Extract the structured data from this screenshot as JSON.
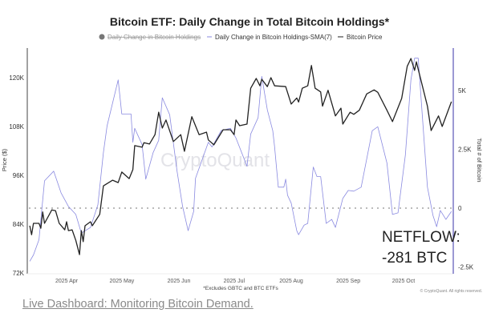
{
  "chart_data": {
    "type": "line",
    "title": "Bitcoin ETF: Daily Change in Total Bitcoin Holdings*",
    "legend": [
      {
        "label": "Daily Change in Bitcoin Holdings",
        "style": "disabled-dot",
        "color": "#888888"
      },
      {
        "label": "Daily Change in Bitcoin Holdings-SMA(7)",
        "color": "#8a8ae0"
      },
      {
        "label": "Bitcoin Price",
        "color": "#222222"
      }
    ],
    "legend_position": "top",
    "ylabel_left": "Price ($)",
    "ylabel_right": "Total # of Bitcoin",
    "left_ticks": [
      "72K",
      "84K",
      "96K",
      "108K",
      "120K"
    ],
    "left_tick_values": [
      72,
      84,
      96,
      108,
      120
    ],
    "right_ticks": [
      "-2.5K",
      "0",
      "2.5K",
      "5K"
    ],
    "right_tick_values": [
      -2.5,
      0,
      2.5,
      5
    ],
    "x_ticks": [
      "2025 Apr",
      "2025 May",
      "2025 Jun",
      "2025 Jul",
      "2025 Aug",
      "2025 Sep",
      "2025 Oct"
    ],
    "x_tick_dates": [
      "2025-04-01",
      "2025-05-01",
      "2025-06-01",
      "2025-07-01",
      "2025-08-01",
      "2025-09-01",
      "2025-10-01"
    ],
    "ylim_left": [
      72,
      126
    ],
    "ylim_right": [
      -2.9,
      6.6
    ],
    "reference_line": {
      "value": 0,
      "style": "dotted"
    },
    "grid": false,
    "watermark": "CryptoQuant",
    "footnote": "*Excludes GBTC and BTC ETFs",
    "copyright": "© CryptoQuant. All rights reserved.",
    "annotation": {
      "line1": "NETFLOW:",
      "line2": "-281 BTC"
    },
    "series": [
      {
        "name": "Bitcoin Price",
        "axis": "left",
        "unit": "K USD",
        "color": "#222222",
        "points": [
          [
            "2025-03-12",
            83.6
          ],
          [
            "2025-03-13",
            81.4
          ],
          [
            "2025-03-14",
            84.2
          ],
          [
            "2025-03-17",
            84.2
          ],
          [
            "2025-03-18",
            83
          ],
          [
            "2025-03-19",
            87
          ],
          [
            "2025-03-20",
            84.2
          ],
          [
            "2025-03-24",
            87.5
          ],
          [
            "2025-03-26",
            87.3
          ],
          [
            "2025-03-28",
            84.2
          ],
          [
            "2025-03-31",
            82.6
          ],
          [
            "2025-04-01",
            84.6
          ],
          [
            "2025-04-02",
            82.4
          ],
          [
            "2025-04-04",
            82.6
          ],
          [
            "2025-04-06",
            80
          ],
          [
            "2025-04-08",
            76.5
          ],
          [
            "2025-04-09",
            82.4
          ],
          [
            "2025-04-10",
            79.7
          ],
          [
            "2025-04-11",
            83.6
          ],
          [
            "2025-04-14",
            84.6
          ],
          [
            "2025-04-15",
            83.6
          ],
          [
            "2025-04-17",
            85
          ],
          [
            "2025-04-19",
            86.4
          ],
          [
            "2025-04-21",
            93.4
          ],
          [
            "2025-04-26",
            94.8
          ],
          [
            "2025-04-29",
            94.2
          ],
          [
            "2025-05-01",
            96.8
          ],
          [
            "2025-05-05",
            95.2
          ],
          [
            "2025-05-07",
            97.4
          ],
          [
            "2025-05-08",
            103.3
          ],
          [
            "2025-05-12",
            102.9
          ],
          [
            "2025-05-13",
            104
          ],
          [
            "2025-05-16",
            103.7
          ],
          [
            "2025-05-19",
            106
          ],
          [
            "2025-05-21",
            111.5
          ],
          [
            "2025-05-23",
            107.6
          ],
          [
            "2025-05-25",
            109.6
          ],
          [
            "2025-05-29",
            104.3
          ],
          [
            "2025-06-02",
            106
          ],
          [
            "2025-06-04",
            101.9
          ],
          [
            "2025-06-08",
            110.4
          ],
          [
            "2025-06-12",
            106
          ],
          [
            "2025-06-16",
            106.6
          ],
          [
            "2025-06-17",
            104.7
          ],
          [
            "2025-06-20",
            103.5
          ],
          [
            "2025-06-25",
            107.2
          ],
          [
            "2025-06-29",
            107.2
          ],
          [
            "2025-07-01",
            106
          ],
          [
            "2025-07-02",
            109.6
          ],
          [
            "2025-07-04",
            108.2
          ],
          [
            "2025-07-08",
            108.6
          ],
          [
            "2025-07-09",
            113
          ],
          [
            "2025-07-10",
            117.4
          ],
          [
            "2025-07-13",
            119.8
          ],
          [
            "2025-07-15",
            118
          ],
          [
            "2025-07-16",
            119.6
          ],
          [
            "2025-07-19",
            117.8
          ],
          [
            "2025-07-21",
            120
          ],
          [
            "2025-07-23",
            118
          ],
          [
            "2025-07-29",
            117.8
          ],
          [
            "2025-08-01",
            113.5
          ],
          [
            "2025-08-04",
            115
          ],
          [
            "2025-08-05",
            114
          ],
          [
            "2025-08-07",
            117.4
          ],
          [
            "2025-08-10",
            118
          ],
          [
            "2025-08-12",
            123
          ],
          [
            "2025-08-14",
            117.4
          ],
          [
            "2025-08-17",
            116.5
          ],
          [
            "2025-08-18",
            113
          ],
          [
            "2025-08-21",
            116.9
          ],
          [
            "2025-08-25",
            110.6
          ],
          [
            "2025-08-28",
            112.5
          ],
          [
            "2025-08-29",
            108.6
          ],
          [
            "2025-09-02",
            111.5
          ],
          [
            "2025-09-04",
            111
          ],
          [
            "2025-09-07",
            112
          ],
          [
            "2025-09-11",
            116
          ],
          [
            "2025-09-15",
            117
          ],
          [
            "2025-09-17",
            116.4
          ],
          [
            "2025-09-22",
            112
          ],
          [
            "2025-09-25",
            109.2
          ],
          [
            "2025-09-30",
            114.9
          ],
          [
            "2025-10-03",
            122.8
          ],
          [
            "2025-10-05",
            124.7
          ],
          [
            "2025-10-07",
            121.8
          ],
          [
            "2025-10-08",
            123.9
          ],
          [
            "2025-10-14",
            113
          ],
          [
            "2025-10-16",
            107
          ],
          [
            "2025-10-20",
            110.6
          ],
          [
            "2025-10-22",
            108
          ],
          [
            "2025-10-27",
            114.1
          ]
        ]
      },
      {
        "name": "Daily Change in Bitcoin Holdings-SMA(7)",
        "axis": "right",
        "unit": "K BTC",
        "color": "#8a8ae0",
        "points": [
          [
            "2025-03-12",
            -2.26
          ],
          [
            "2025-03-14",
            -1.99
          ],
          [
            "2025-03-17",
            -1.34
          ],
          [
            "2025-03-20",
            1.16
          ],
          [
            "2025-03-25",
            1.57
          ],
          [
            "2025-03-29",
            0.65
          ],
          [
            "2025-04-02",
            0.07
          ],
          [
            "2025-04-06",
            -0.27
          ],
          [
            "2025-04-09",
            -1.06
          ],
          [
            "2025-04-14",
            -0.82
          ],
          [
            "2025-04-18",
            0.14
          ],
          [
            "2025-04-21",
            2.36
          ],
          [
            "2025-04-23",
            3.5
          ],
          [
            "2025-04-29",
            5.45
          ],
          [
            "2025-05-01",
            4.0
          ],
          [
            "2025-05-06",
            4.0
          ],
          [
            "2025-05-07",
            2.8
          ],
          [
            "2025-05-08",
            3.39
          ],
          [
            "2025-05-12",
            2.7
          ],
          [
            "2025-05-14",
            1.23
          ],
          [
            "2025-05-18",
            2.36
          ],
          [
            "2025-05-21",
            2.88
          ],
          [
            "2025-05-23",
            4.69
          ],
          [
            "2025-05-27",
            3.97
          ],
          [
            "2025-05-31",
            1.57
          ],
          [
            "2025-06-03",
            0.07
          ],
          [
            "2025-06-06",
            -0.96
          ],
          [
            "2025-06-09",
            -0.14
          ],
          [
            "2025-06-10",
            1.27
          ],
          [
            "2025-06-17",
            2.8
          ],
          [
            "2025-06-19",
            2.6
          ],
          [
            "2025-06-24",
            3.3
          ],
          [
            "2025-06-29",
            3.39
          ],
          [
            "2025-07-02",
            2.98
          ],
          [
            "2025-07-08",
            1.78
          ],
          [
            "2025-07-10",
            3.15
          ],
          [
            "2025-07-14",
            3.84
          ],
          [
            "2025-07-16",
            5.6
          ],
          [
            "2025-07-19",
            4.18
          ],
          [
            "2025-07-22",
            3.29
          ],
          [
            "2025-07-23",
            2.6
          ],
          [
            "2025-07-25",
            0.89
          ],
          [
            "2025-07-28",
            0.89
          ],
          [
            "2025-07-29",
            1.23
          ],
          [
            "2025-07-30",
            0.55
          ],
          [
            "2025-08-01",
            0.21
          ],
          [
            "2025-08-04",
            -0.96
          ],
          [
            "2025-08-05",
            -1.13
          ],
          [
            "2025-08-08",
            -0.72
          ],
          [
            "2025-08-10",
            -0.65
          ],
          [
            "2025-08-13",
            1.75
          ],
          [
            "2025-08-15",
            1.34
          ],
          [
            "2025-08-17",
            1.34
          ],
          [
            "2025-08-20",
            -0.65
          ],
          [
            "2025-08-23",
            -0.48
          ],
          [
            "2025-08-25",
            -0.82
          ],
          [
            "2025-08-29",
            0.41
          ],
          [
            "2025-09-01",
            0.75
          ],
          [
            "2025-09-04",
            0.72
          ],
          [
            "2025-09-08",
            0.89
          ],
          [
            "2025-09-14",
            3.29
          ],
          [
            "2025-09-17",
            3.46
          ],
          [
            "2025-09-22",
            1.92
          ],
          [
            "2025-09-25",
            -0.27
          ],
          [
            "2025-09-28",
            -0.2
          ],
          [
            "2025-10-02",
            2.26
          ],
          [
            "2025-10-05",
            5.45
          ],
          [
            "2025-10-07",
            6.37
          ],
          [
            "2025-10-09",
            6.37
          ],
          [
            "2025-10-14",
            0.89
          ],
          [
            "2025-10-17",
            -0.31
          ],
          [
            "2025-10-19",
            -0.79
          ],
          [
            "2025-10-21",
            -0.1
          ],
          [
            "2025-10-24",
            -0.48
          ],
          [
            "2025-10-27",
            -0.14
          ]
        ]
      }
    ]
  },
  "link": {
    "text": "Live Dashboard: Monitoring Bitcoin Demand."
  }
}
